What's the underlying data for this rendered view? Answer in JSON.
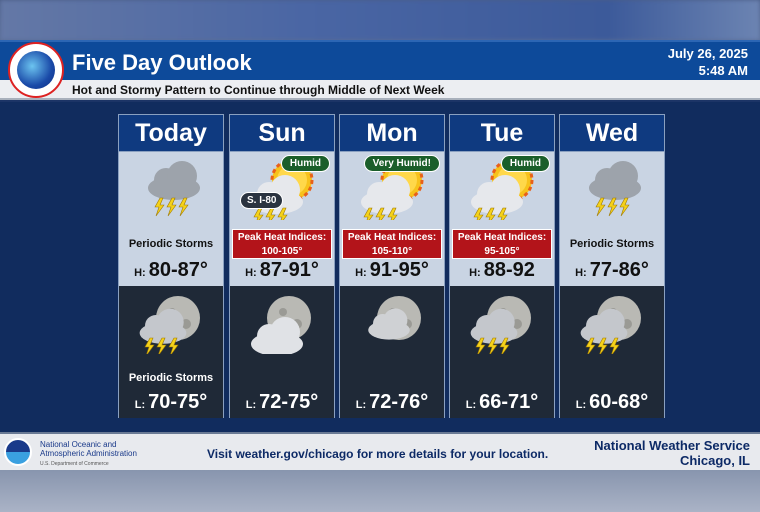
{
  "header": {
    "title": "Five Day Outlook",
    "date": "July 26, 2025",
    "time": "5:48 AM",
    "subtitle": "Hot and Stormy Pattern to Continue through Middle of Next Week",
    "logo": "NATIONAL WEATHER SERVICE"
  },
  "days": [
    {
      "name": "Today",
      "day_icon": "thunderstorm-cloud-icon",
      "day_cond": "Periodic Storms",
      "high_label": "H:",
      "high": "80-87°",
      "night_icon": "moon-thunderstorm-icon",
      "night_cond": "Periodic Storms",
      "low_label": "L:",
      "low": "70-75°"
    },
    {
      "name": "Sun",
      "day_icon": "sun-cloud-thunderstorm-icon",
      "badge": "Humid",
      "note": "S. I-80",
      "heat1": "Peak Heat Indices:",
      "heat2": "100-105°",
      "high_label": "H:",
      "high": "87-91°",
      "night_icon": "moon-cloud-icon",
      "low_label": "L:",
      "low": "72-75°"
    },
    {
      "name": "Mon",
      "day_icon": "sun-cloud-thunderstorm-icon",
      "badge": "Very Humid!",
      "heat1": "Peak Heat Indices:",
      "heat2": "105-110°",
      "high_label": "H:",
      "high": "91-95°",
      "night_icon": "moon-cloudy-icon",
      "low_label": "L:",
      "low": "72-76°"
    },
    {
      "name": "Tue",
      "day_icon": "sun-cloud-thunderstorm-icon",
      "badge": "Humid",
      "heat1": "Peak Heat Indices:",
      "heat2": "95-105°",
      "high_label": "H:",
      "high": "88-92",
      "night_icon": "moon-thunderstorm-icon",
      "low_label": "L:",
      "low": "66-71°"
    },
    {
      "name": "Wed",
      "day_icon": "thunderstorm-cloud-icon",
      "day_cond": "Periodic Storms",
      "high_label": "H:",
      "high": "77-86°",
      "night_icon": "moon-thunderstorm-icon",
      "low_label": "L:",
      "low": "60-68°"
    }
  ],
  "footer": {
    "noaa1": "National Oceanic and",
    "noaa2": "Atmospheric Administration",
    "noaa3": "U.S. Department of Commerce",
    "visit": "Visit weather.gov/chicago for more details for your location.",
    "nws1": "National Weather Service",
    "nws2": "Chicago, IL"
  },
  "colors": {
    "header": "#0d4a9a",
    "panel": "#112c5e",
    "heat": "#b3141a",
    "humid": "#1a5e2a"
  }
}
